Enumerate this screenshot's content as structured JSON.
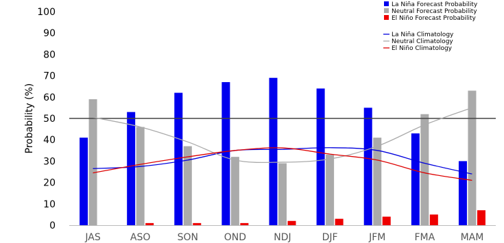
{
  "chart_data": {
    "type": "bar",
    "ylabel": "Probability (%)",
    "ylim": [
      0,
      100
    ],
    "yticks": [
      0,
      10,
      20,
      30,
      40,
      50,
      60,
      70,
      80,
      90,
      100
    ],
    "reference_line": 50,
    "categories": [
      "JAS",
      "ASO",
      "SON",
      "OND",
      "NDJ",
      "DJF",
      "JFM",
      "FMA",
      "MAM"
    ],
    "series": [
      {
        "name": "La Niña Forecast Probability",
        "color": "#0000ee",
        "values": [
          41,
          53,
          62,
          67,
          69,
          64,
          55,
          43,
          30
        ]
      },
      {
        "name": "Neutral Forecast Probability",
        "color": "#aaaaaa",
        "values": [
          59,
          46,
          37,
          32,
          29,
          33,
          41,
          52,
          63
        ]
      },
      {
        "name": "El Niño Forecast Probability",
        "color": "#ee0000",
        "values": [
          0,
          1,
          1,
          1,
          2,
          3,
          4,
          5,
          7
        ]
      }
    ],
    "lines": [
      {
        "name": "La Niña Climatology",
        "color": "#0000dd",
        "values": [
          26.5,
          27.5,
          30.5,
          35,
          35.5,
          36.3,
          35,
          29,
          24
        ]
      },
      {
        "name": "Neutral Climatology",
        "color": "#aaaaaa",
        "values": [
          50.5,
          46,
          39,
          30.5,
          29.5,
          31,
          37,
          47,
          55
        ]
      },
      {
        "name": "El Niño Climatology",
        "color": "#dd0000",
        "values": [
          24.5,
          28.5,
          32,
          35,
          36.2,
          33.3,
          30.5,
          24.5,
          21
        ]
      }
    ],
    "grid": false,
    "legend_position": "top-right"
  }
}
